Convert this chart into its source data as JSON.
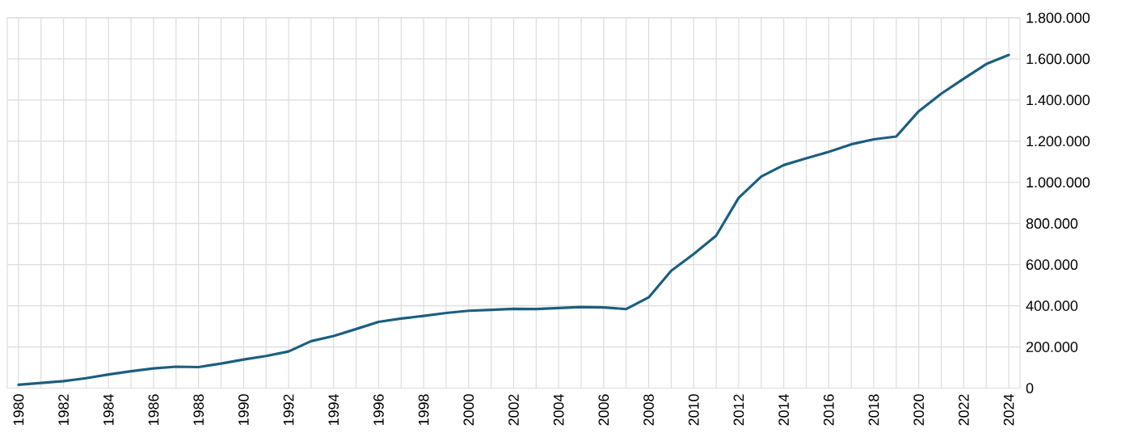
{
  "chart_data": {
    "type": "line",
    "categories": [
      "1980",
      null,
      "1982",
      null,
      "1984",
      null,
      "1986",
      null,
      "1988",
      null,
      "1990",
      null,
      "1992",
      null,
      "1994",
      null,
      "1996",
      null,
      "1998",
      null,
      "2000",
      null,
      "2002",
      null,
      "2004",
      null,
      "2006",
      null,
      "2008",
      null,
      "2010",
      null,
      "2012",
      null,
      "2014",
      null,
      "2016",
      null,
      "2018",
      null,
      "2020",
      null,
      "2022",
      null,
      "2024"
    ],
    "series": [
      {
        "color": "#1b5e80",
        "values": [
          16000,
          25000,
          34000,
          48000,
          66000,
          82000,
          96000,
          104000,
          102000,
          119000,
          139000,
          156000,
          178000,
          228000,
          253000,
          287000,
          322000,
          338000,
          351000,
          365000,
          376000,
          380000,
          385000,
          384000,
          389000,
          394000,
          392000,
          384000,
          441000,
          570000,
          652000,
          741000,
          925000,
          1028000,
          1084000,
          1117000,
          1148000,
          1185000,
          1209000,
          1223000,
          1346000,
          1431000,
          1504000,
          1575000,
          1619000
        ]
      }
    ],
    "ylim": [
      0,
      1800000
    ],
    "yticks": [
      0,
      {
        "value": 200000,
        "label": "200.000"
      },
      {
        "value": 400000,
        "label": "400.000"
      },
      {
        "value": 600000,
        "label": "600.000"
      },
      {
        "value": 800000,
        "label": "800.000"
      },
      {
        "value": 1000000,
        "label": "1.000.000"
      },
      {
        "value": 1200000,
        "label": "1.200.000"
      },
      {
        "value": 1400000,
        "label": "1.400.000"
      },
      {
        "value": 1600000,
        "label": "1.600.000"
      },
      {
        "value": 1800000,
        "label": "1.800.000"
      }
    ],
    "grid": true,
    "marker": "none",
    "line_style": "solid"
  }
}
